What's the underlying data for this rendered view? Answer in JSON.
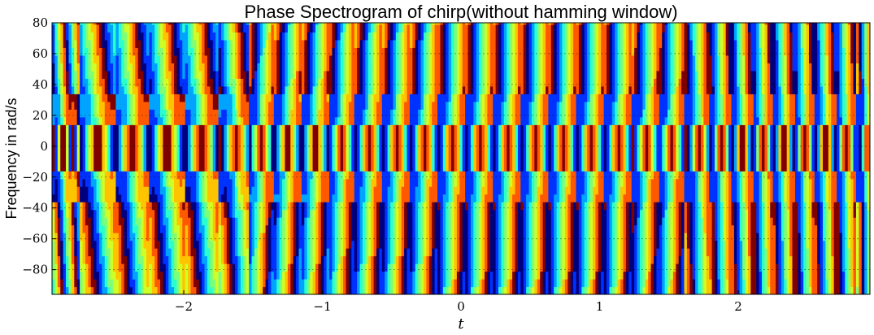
{
  "chart_data": {
    "type": "heatmap",
    "title": "Phase Spectrogram of chirp(without hamming window)",
    "xlabel": "t",
    "ylabel": "Frequency in rad/s",
    "xlim": [
      -2.95,
      2.95
    ],
    "ylim": [
      -96,
      80
    ],
    "x_ticks": [
      -2,
      -1,
      0,
      1,
      2
    ],
    "x_tick_labels": [
      "−2",
      "−1",
      "0",
      "1",
      "2"
    ],
    "y_ticks": [
      80,
      60,
      40,
      20,
      0,
      -20,
      -40,
      -60,
      -80
    ],
    "y_tick_labels": [
      "80",
      "60",
      "40",
      "20",
      "0",
      "−20",
      "−40",
      "−60",
      "−80"
    ],
    "grid": "dashed horizontal at y ticks",
    "colormap": "jet",
    "colormap_colors": [
      "#00007f",
      "#0032ff",
      "#00a4ff",
      "#29ffce",
      "#7dff7a",
      "#ceff29",
      "#ffc400",
      "#ff5900",
      "#7f0000"
    ],
    "value_range": [
      -3.14159,
      3.14159
    ],
    "quantity": "phase (rad)",
    "time_resolution": 0.02,
    "freq_resolution": 5,
    "band_centers": [
      {
        "t": -2.87,
        "slope": 0.25
      },
      {
        "t": -2.62,
        "slope": 0.25
      },
      {
        "t": -2.37,
        "slope": 0.2
      },
      {
        "t": -2.12,
        "slope": 0.2
      },
      {
        "t": -1.87,
        "slope": 0.22
      },
      {
        "t": -1.62,
        "slope": 0.2
      },
      {
        "t": -1.44,
        "slope": -0.15
      },
      {
        "t": -1.25,
        "slope": -0.15
      },
      {
        "t": -1.05,
        "slope": -0.15
      },
      {
        "t": -0.86,
        "slope": -0.12
      },
      {
        "t": -0.66,
        "slope": -0.12
      },
      {
        "t": -0.46,
        "slope": -0.12
      },
      {
        "t": -0.26,
        "slope": -0.12
      },
      {
        "t": -0.06,
        "slope": -0.1
      },
      {
        "t": 0.14,
        "slope": -0.1
      },
      {
        "t": 0.34,
        "slope": -0.1
      },
      {
        "t": 0.54,
        "slope": -0.1
      },
      {
        "t": 0.74,
        "slope": -0.1
      },
      {
        "t": 0.94,
        "slope": -0.1
      },
      {
        "t": 1.14,
        "slope": -0.1
      },
      {
        "t": 1.34,
        "slope": -0.1
      },
      {
        "t": 1.52,
        "slope": -0.1
      },
      {
        "t": 1.72,
        "slope": 0.08
      },
      {
        "t": 1.88,
        "slope": 0.08
      },
      {
        "t": 2.03,
        "slope": 0.08
      },
      {
        "t": 2.18,
        "slope": 0.08
      },
      {
        "t": 2.33,
        "slope": 0.08
      },
      {
        "t": 2.48,
        "slope": 0.08
      },
      {
        "t": 2.63,
        "slope": 0.08
      },
      {
        "t": 2.78,
        "slope": 0.08
      },
      {
        "t": 2.93,
        "slope": 0.08
      }
    ]
  }
}
